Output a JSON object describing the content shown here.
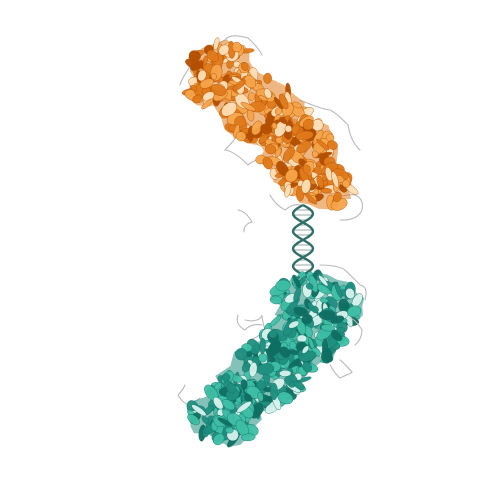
{
  "image": {
    "background": "#ffffff",
    "subject": "protein-structure-cartoon"
  },
  "chains": [
    {
      "name": "chain-orange",
      "colors": {
        "dark": "#b24f00",
        "mid": "#e07a1a",
        "light": "#f6a54a",
        "pale": "#ffe0b8"
      },
      "coil": "#b9b9b9"
    },
    {
      "name": "chain-teal",
      "colors": {
        "dark": "#0f6e62",
        "mid": "#1f8f80",
        "light": "#3fbfa6",
        "pale": "#d8f3ed"
      },
      "coil": "#b9b9b9"
    }
  ],
  "linker": {
    "name": "dna-helix-linker",
    "colors": {
      "helix": "#2f6f67",
      "rung": "#9aa9a7"
    }
  }
}
